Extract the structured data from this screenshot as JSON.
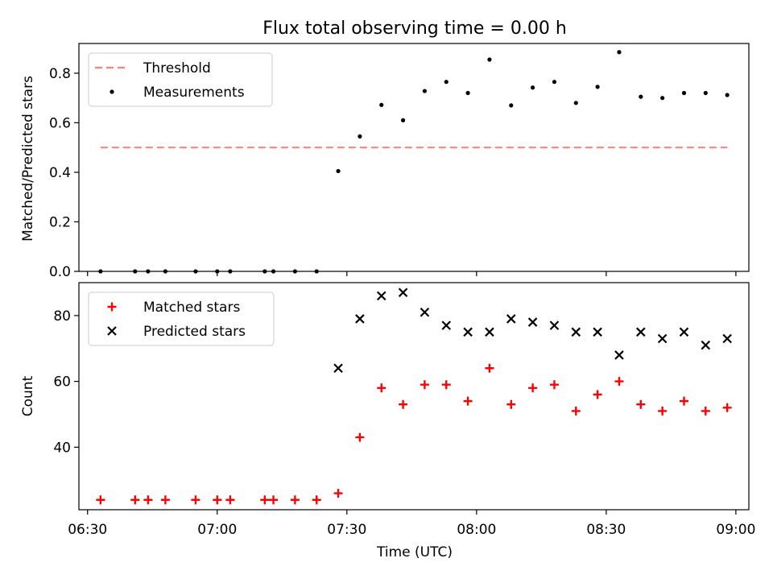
{
  "figure": {
    "title": "Flux total observing time = 0.00 h",
    "xlabel": "Time (UTC)",
    "x_ticks": [
      "06:30",
      "07:00",
      "07:30",
      "08:00",
      "08:30",
      "09:00"
    ]
  },
  "chart_data": [
    {
      "type": "scatter",
      "ylabel": "Matched/Predicted stars",
      "xlim": [
        "06:28",
        "09:03"
      ],
      "ylim": [
        0,
        0.92
      ],
      "y_ticks": [
        "0.0",
        "0.2",
        "0.4",
        "0.6",
        "0.8"
      ],
      "legend_position": "top-left",
      "threshold": {
        "name": "Threshold",
        "value": 0.5,
        "x_start": "06:33",
        "x_end": "08:58",
        "color": "#ff8080"
      },
      "series": [
        {
          "name": "Measurements",
          "color": "#000000",
          "marker": "dot",
          "x": [
            "06:33",
            "06:41",
            "06:44",
            "06:48",
            "06:55",
            "07:00",
            "07:03",
            "07:11",
            "07:13",
            "07:18",
            "07:23",
            "07:28",
            "07:33",
            "07:38",
            "07:43",
            "07:48",
            "07:53",
            "07:58",
            "08:03",
            "08:08",
            "08:13",
            "08:18",
            "08:23",
            "08:28",
            "08:33",
            "08:38",
            "08:43",
            "08:48",
            "08:53",
            "08:58"
          ],
          "y": [
            0,
            0,
            0,
            0,
            0,
            0,
            0,
            0,
            0,
            0,
            0,
            0.405,
            0.545,
            0.672,
            0.61,
            0.728,
            0.765,
            0.72,
            0.855,
            0.67,
            0.742,
            0.765,
            0.68,
            0.745,
            0.885,
            0.705,
            0.7,
            0.72,
            0.72,
            0.712
          ]
        }
      ]
    },
    {
      "type": "scatter",
      "ylabel": "Count",
      "xlim": [
        "06:28",
        "09:03"
      ],
      "ylim": [
        21,
        90
      ],
      "y_ticks": [
        "40",
        "60",
        "80"
      ],
      "legend_position": "top-left",
      "series": [
        {
          "name": "Matched stars",
          "color": "#ff0000",
          "marker": "plus",
          "x": [
            "06:33",
            "06:41",
            "06:44",
            "06:48",
            "06:55",
            "07:00",
            "07:03",
            "07:11",
            "07:13",
            "07:18",
            "07:23",
            "07:28",
            "07:33",
            "07:38",
            "07:43",
            "07:48",
            "07:53",
            "07:58",
            "08:03",
            "08:08",
            "08:13",
            "08:18",
            "08:23",
            "08:28",
            "08:33",
            "08:38",
            "08:43",
            "08:48",
            "08:53",
            "08:58"
          ],
          "y": [
            24,
            24,
            24,
            24,
            24,
            24,
            24,
            24,
            24,
            24,
            24,
            26,
            43,
            58,
            53,
            59,
            59,
            54,
            64,
            53,
            58,
            59,
            51,
            56,
            60,
            53,
            51,
            54,
            51,
            52
          ]
        },
        {
          "name": "Predicted stars",
          "color": "#000000",
          "marker": "x",
          "x": [
            "07:28",
            "07:33",
            "07:38",
            "07:43",
            "07:48",
            "07:53",
            "07:58",
            "08:03",
            "08:08",
            "08:13",
            "08:18",
            "08:23",
            "08:28",
            "08:33",
            "08:38",
            "08:43",
            "08:48",
            "08:53",
            "08:58"
          ],
          "y": [
            64,
            79,
            86,
            87,
            81,
            77,
            75,
            75,
            79,
            78,
            77,
            75,
            75,
            68,
            75,
            73,
            75,
            71,
            73
          ]
        }
      ]
    }
  ]
}
